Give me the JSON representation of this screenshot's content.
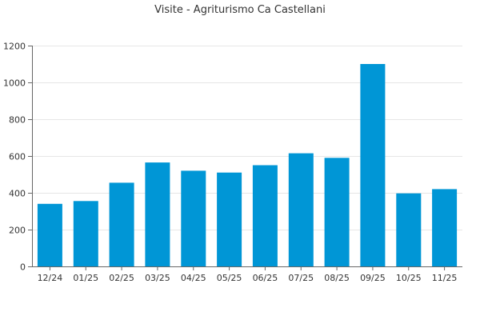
{
  "chart_data": {
    "type": "bar",
    "title": "Visite - Agriturismo Ca Castellani",
    "xlabel": "",
    "ylabel": "",
    "categories": [
      "12/24",
      "01/25",
      "02/25",
      "03/25",
      "04/25",
      "05/25",
      "06/25",
      "07/25",
      "08/25",
      "09/25",
      "10/25",
      "11/25"
    ],
    "values": [
      340,
      355,
      455,
      565,
      520,
      510,
      550,
      615,
      590,
      1100,
      397,
      420
    ],
    "ylim": [
      0,
      1200
    ],
    "yticks": [
      0,
      200,
      400,
      600,
      800,
      1000,
      1200
    ],
    "grid": true,
    "legend": "none",
    "bar_color": "#0096d6"
  }
}
